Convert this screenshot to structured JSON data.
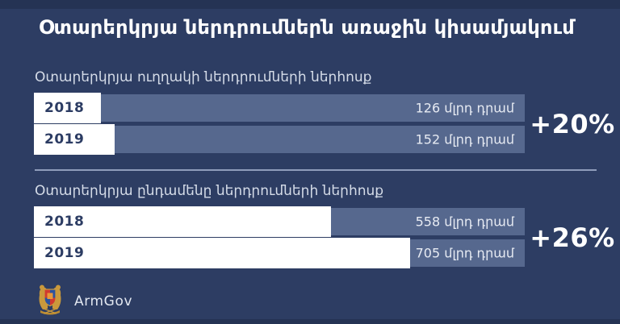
{
  "title": "Օտարերկրյա ներդրումներն առաջին կիսամյակում",
  "colors": {
    "background": "#2d3d63",
    "bar_track": "#56688e",
    "bar_fill": "#ffffff",
    "title_text": "#ffffff",
    "section_label_text": "#d5dce8",
    "year_text": "#2c3c63",
    "value_text": "#e7ebf3",
    "change_text": "#ffffff",
    "divider": "#b0bed8",
    "coat_gold": "#c9993c",
    "coat_red": "#d03a2f",
    "coat_blue": "#2a52a0",
    "coat_orange": "#e8973a"
  },
  "footer": {
    "brand": "ArmGov",
    "logo_icon": "armenian-coat-of-arms-icon"
  },
  "chart_data": [
    {
      "type": "bar",
      "orientation": "horizontal",
      "title": "Օտարերկրյա ուղղակի ներդրումների ներհոսք",
      "categories": [
        "2018",
        "2019"
      ],
      "values": [
        126,
        152
      ],
      "unit": "մլրդ դրամ",
      "value_labels": [
        "126 մլրդ դրամ",
        "152 մլրդ դրամ"
      ],
      "change_label": "+20%",
      "fill_pct": [
        13.7,
        16.5
      ],
      "track_max": 920,
      "legend": "none",
      "grid": false
    },
    {
      "type": "bar",
      "orientation": "horizontal",
      "title": "Օտարերկրյա ընդամենը ներդրումների ներհոսք",
      "categories": [
        "2018",
        "2019"
      ],
      "values": [
        558,
        705
      ],
      "unit": "մլրդ դրամ",
      "value_labels": [
        "558 մլրդ դրամ",
        "705 մլրդ դրամ"
      ],
      "change_label": "+26%",
      "fill_pct": [
        60.6,
        76.6
      ],
      "track_max": 920,
      "legend": "none",
      "grid": false
    }
  ]
}
